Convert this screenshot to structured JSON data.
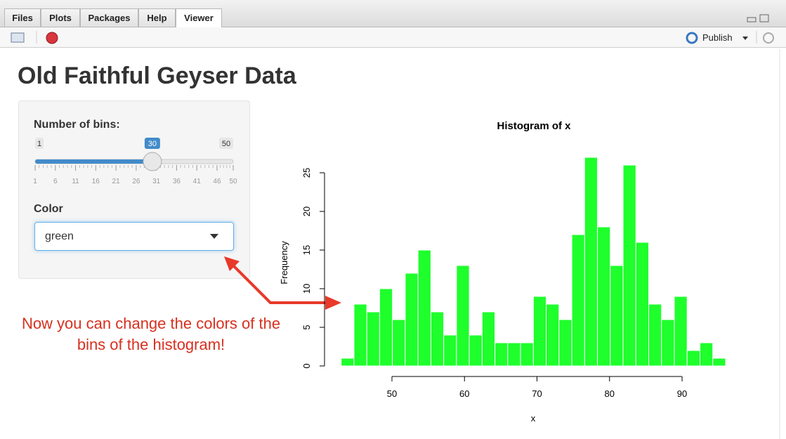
{
  "tabs": [
    "Files",
    "Plots",
    "Packages",
    "Help",
    "Viewer"
  ],
  "toolbar": {
    "publish": "Publish"
  },
  "app": {
    "title": "Old Faithful Geyser Data",
    "slider": {
      "label": "Number of bins:",
      "min": 1,
      "max": 50,
      "value": 30,
      "ticks": [
        1,
        6,
        11,
        16,
        21,
        26,
        31,
        36,
        41,
        46,
        50
      ]
    },
    "color_select": {
      "label": "Color",
      "value": "green"
    }
  },
  "annotation": "Now you can change the colors of the bins of the histogram!",
  "chart_data": {
    "type": "histogram",
    "title": "Histogram of x",
    "x_label": "x",
    "y_label": "Frequency",
    "color": "#1eff2c",
    "bins": [
      43,
      44.7667,
      46.5333,
      48.3,
      50.0667,
      51.8333,
      53.6,
      55.3667,
      57.1333,
      58.9,
      60.6667,
      62.4333,
      64.2,
      65.9667,
      67.7333,
      69.5,
      71.2667,
      73.0333,
      74.8,
      76.5667,
      78.3333,
      80.1,
      81.8667,
      83.6333,
      85.4,
      87.1667,
      88.9333,
      90.7,
      92.4667,
      94.2333,
      96
    ],
    "values": [
      1,
      8,
      7,
      10,
      6,
      12,
      15,
      7,
      4,
      13,
      4,
      7,
      3,
      3,
      3,
      9,
      8,
      6,
      17,
      27,
      18,
      13,
      26,
      16,
      8,
      6,
      9,
      2,
      3,
      1
    ],
    "xlim": [
      43,
      96
    ],
    "xticks": [
      50,
      60,
      70,
      80,
      90
    ],
    "ylim": [
      0,
      27
    ],
    "yticks": [
      0,
      5,
      10,
      15,
      20,
      25
    ]
  }
}
